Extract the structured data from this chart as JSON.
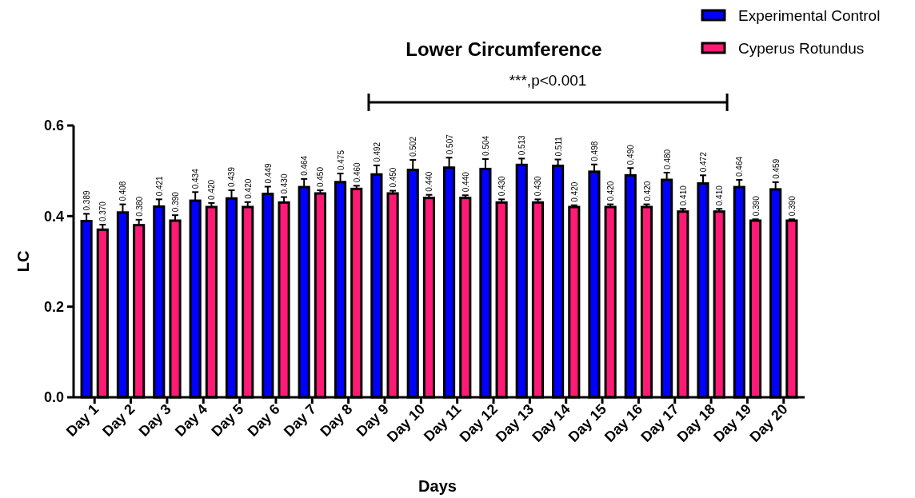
{
  "chart_data": {
    "type": "bar",
    "title": "Lower Circumference",
    "xlabel": "Days",
    "ylabel": "LC",
    "categories": [
      "Day 1",
      "Day 2",
      "Day 3",
      "Day 4",
      "Day 5",
      "Day 6",
      "Day 7",
      "Day 8",
      "Day 9",
      "Day 10",
      "Day 11",
      "Day 12",
      "Day 13",
      "Day 14",
      "Day 15",
      "Day 16",
      "Day 17",
      "Day 18",
      "Day 19",
      "Day 20"
    ],
    "series": [
      {
        "name": "Experimental Control",
        "color": "#0000ff",
        "values": [
          0.389,
          0.408,
          0.421,
          0.434,
          0.439,
          0.449,
          0.464,
          0.475,
          0.492,
          0.502,
          0.507,
          0.504,
          0.513,
          0.511,
          0.498,
          0.49,
          0.48,
          0.472,
          0.464,
          0.459
        ],
        "value_labels": [
          "0.389",
          "0.408",
          "0.421",
          "0.434",
          "0.439",
          "0.449",
          "0.464",
          "0.475",
          "0.492",
          "0.502",
          "0.507",
          "0.504",
          "0.513",
          "0.511",
          "0.498",
          "0.490",
          "0.480",
          "0.472",
          "0.464",
          "0.459"
        ],
        "errors": [
          [
            0.389,
            0.405
          ],
          [
            0.408,
            0.426
          ],
          [
            0.421,
            0.437
          ],
          [
            0.434,
            0.453
          ],
          [
            0.439,
            0.457
          ],
          [
            0.449,
            0.465
          ],
          [
            0.464,
            0.482
          ],
          [
            0.475,
            0.494
          ],
          [
            0.492,
            0.512
          ],
          [
            0.502,
            0.524
          ],
          [
            0.507,
            0.529
          ],
          [
            0.504,
            0.526
          ],
          [
            0.513,
            0.527
          ],
          [
            0.511,
            0.525
          ],
          [
            0.498,
            0.514
          ],
          [
            0.49,
            0.506
          ],
          [
            0.48,
            0.496
          ],
          [
            0.472,
            0.49
          ],
          [
            0.464,
            0.48
          ],
          [
            0.459,
            0.475
          ]
        ]
      },
      {
        "name": "Cyperus Rotundus",
        "color": "#ff1a75",
        "values": [
          0.37,
          0.38,
          0.39,
          0.42,
          0.42,
          0.43,
          0.45,
          0.46,
          0.45,
          0.44,
          0.44,
          0.43,
          0.43,
          0.42,
          0.42,
          0.42,
          0.41,
          0.41,
          0.39,
          0.39
        ],
        "value_labels": [
          "0.370",
          "0.380",
          "0.390",
          "0.420",
          "0.420",
          "0.430",
          "0.450",
          "0.460",
          "0.450",
          "0.440",
          "0.440",
          "0.430",
          "0.430",
          "0.420",
          "0.420",
          "0.420",
          "0.410",
          "0.410",
          "0.390",
          "0.390"
        ],
        "errors": [
          [
            0.37,
            0.381
          ],
          [
            0.38,
            0.392
          ],
          [
            0.39,
            0.402
          ],
          [
            0.42,
            0.429
          ],
          [
            0.42,
            0.431
          ],
          [
            0.43,
            0.442
          ],
          [
            0.45,
            0.457
          ],
          [
            0.46,
            0.467
          ],
          [
            0.45,
            0.456
          ],
          [
            0.44,
            0.447
          ],
          [
            0.44,
            0.446
          ],
          [
            0.43,
            0.437
          ],
          [
            0.43,
            0.437
          ],
          [
            0.42,
            0.424
          ],
          [
            0.42,
            0.426
          ],
          [
            0.42,
            0.426
          ],
          [
            0.41,
            0.416
          ],
          [
            0.41,
            0.416
          ],
          [
            0.39,
            0.393
          ],
          [
            0.39,
            0.393
          ]
        ]
      }
    ],
    "ylim": [
      0,
      0.6
    ],
    "yticks": [
      {
        "value": 0,
        "label": "0.0"
      },
      {
        "value": 0.2,
        "label": "0.2"
      },
      {
        "value": 0.4,
        "label": "0.4"
      },
      {
        "value": 0.6,
        "label": "0.6"
      }
    ],
    "grid": false,
    "legend": "top right",
    "annotations": [
      "***,p<0.001"
    ]
  }
}
